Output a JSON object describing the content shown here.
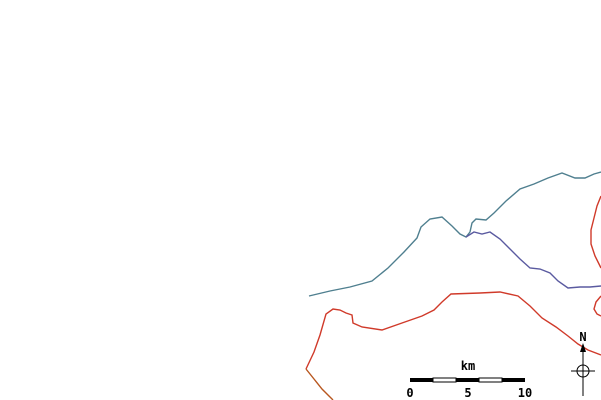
{
  "map": {
    "colors": {
      "background": "#ffffff",
      "river": "#5a5aa0",
      "river_coastal": "#4f7f8f",
      "boundary": "#d03a2a",
      "boundary_dark": "#b8561e",
      "scale": "#000000"
    },
    "scale_bar": {
      "unit": "km",
      "ticks": [
        "0",
        "5",
        "10"
      ]
    },
    "north_arrow": {
      "label": "N",
      "icon": "compass-rose-icon"
    }
  }
}
